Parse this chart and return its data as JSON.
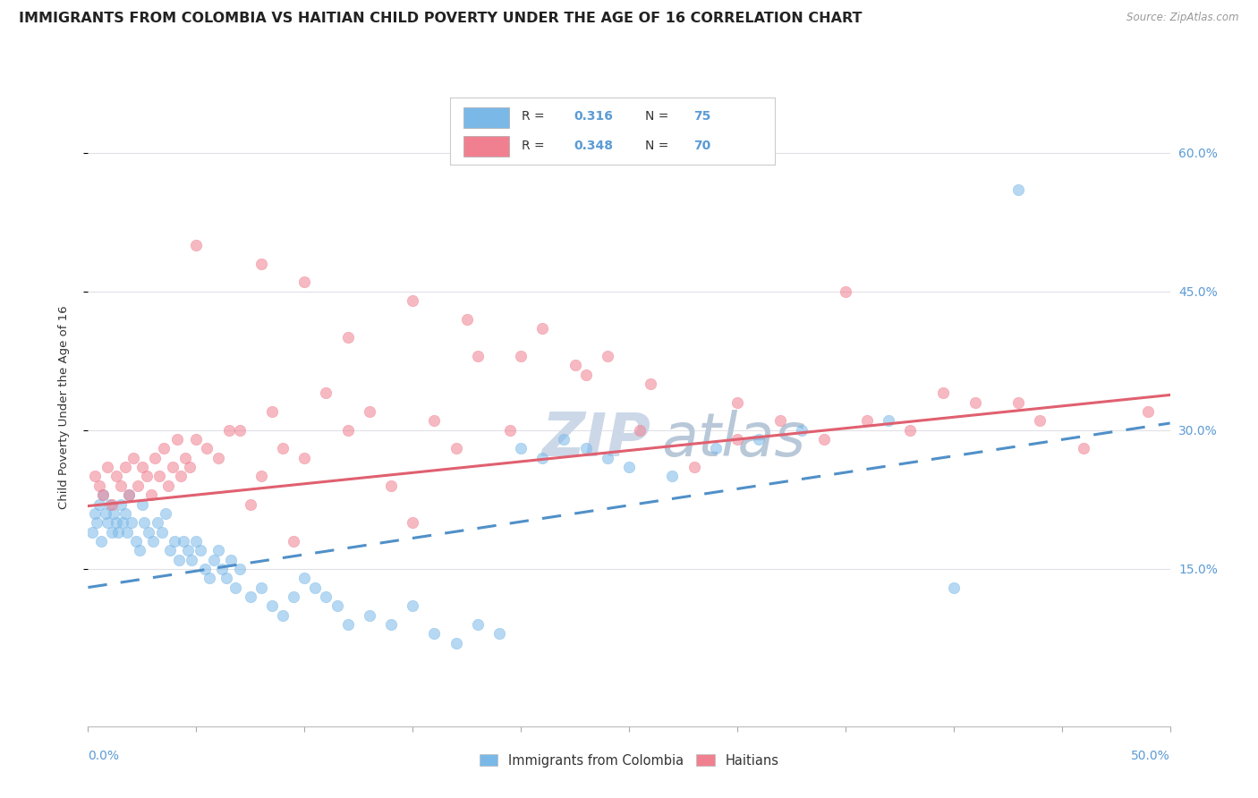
{
  "title": "IMMIGRANTS FROM COLOMBIA VS HAITIAN CHILD POVERTY UNDER THE AGE OF 16 CORRELATION CHART",
  "source": "Source: ZipAtlas.com",
  "ylabel": "Child Poverty Under the Age of 16",
  "ytick_labels": [
    "15.0%",
    "30.0%",
    "45.0%",
    "60.0%"
  ],
  "ytick_values": [
    0.15,
    0.3,
    0.45,
    0.6
  ],
  "xlim": [
    0.0,
    0.5
  ],
  "ylim": [
    -0.02,
    0.67
  ],
  "r_colombia": 0.316,
  "n_colombia": 75,
  "r_haiti": 0.348,
  "n_haiti": 70,
  "color_colombia": "#7ab8e8",
  "color_haiti": "#f08090",
  "color_colombia_line": "#5090c8",
  "color_haiti_line": "#e06070",
  "legend_label_colombia": "Immigrants from Colombia",
  "legend_label_haiti": "Haitians",
  "watermark": "ZIPatlas",
  "colombia_x": [
    0.002,
    0.003,
    0.004,
    0.005,
    0.006,
    0.007,
    0.008,
    0.009,
    0.01,
    0.011,
    0.012,
    0.013,
    0.014,
    0.015,
    0.016,
    0.017,
    0.018,
    0.019,
    0.02,
    0.022,
    0.024,
    0.025,
    0.026,
    0.028,
    0.03,
    0.032,
    0.034,
    0.036,
    0.038,
    0.04,
    0.042,
    0.044,
    0.046,
    0.048,
    0.05,
    0.052,
    0.054,
    0.056,
    0.058,
    0.06,
    0.062,
    0.064,
    0.066,
    0.068,
    0.07,
    0.075,
    0.08,
    0.085,
    0.09,
    0.095,
    0.1,
    0.105,
    0.11,
    0.115,
    0.12,
    0.13,
    0.14,
    0.15,
    0.16,
    0.17,
    0.18,
    0.19,
    0.2,
    0.21,
    0.22,
    0.23,
    0.24,
    0.25,
    0.27,
    0.29,
    0.31,
    0.33,
    0.37,
    0.4,
    0.43
  ],
  "colombia_y": [
    0.19,
    0.21,
    0.2,
    0.22,
    0.18,
    0.23,
    0.21,
    0.2,
    0.22,
    0.19,
    0.21,
    0.2,
    0.19,
    0.22,
    0.2,
    0.21,
    0.19,
    0.23,
    0.2,
    0.18,
    0.17,
    0.22,
    0.2,
    0.19,
    0.18,
    0.2,
    0.19,
    0.21,
    0.17,
    0.18,
    0.16,
    0.18,
    0.17,
    0.16,
    0.18,
    0.17,
    0.15,
    0.14,
    0.16,
    0.17,
    0.15,
    0.14,
    0.16,
    0.13,
    0.15,
    0.12,
    0.13,
    0.11,
    0.1,
    0.12,
    0.14,
    0.13,
    0.12,
    0.11,
    0.09,
    0.1,
    0.09,
    0.11,
    0.08,
    0.07,
    0.09,
    0.08,
    0.28,
    0.27,
    0.29,
    0.28,
    0.27,
    0.26,
    0.25,
    0.28,
    0.29,
    0.3,
    0.31,
    0.13,
    0.56
  ],
  "haiti_x": [
    0.003,
    0.005,
    0.007,
    0.009,
    0.011,
    0.013,
    0.015,
    0.017,
    0.019,
    0.021,
    0.023,
    0.025,
    0.027,
    0.029,
    0.031,
    0.033,
    0.035,
    0.037,
    0.039,
    0.041,
    0.043,
    0.045,
    0.047,
    0.05,
    0.055,
    0.06,
    0.065,
    0.07,
    0.075,
    0.08,
    0.085,
    0.09,
    0.095,
    0.1,
    0.11,
    0.12,
    0.13,
    0.14,
    0.15,
    0.16,
    0.17,
    0.18,
    0.195,
    0.21,
    0.225,
    0.24,
    0.255,
    0.28,
    0.3,
    0.32,
    0.34,
    0.35,
    0.36,
    0.38,
    0.395,
    0.41,
    0.43,
    0.44,
    0.46,
    0.49,
    0.05,
    0.08,
    0.1,
    0.12,
    0.15,
    0.175,
    0.2,
    0.23,
    0.26,
    0.3
  ],
  "haiti_y": [
    0.25,
    0.24,
    0.23,
    0.26,
    0.22,
    0.25,
    0.24,
    0.26,
    0.23,
    0.27,
    0.24,
    0.26,
    0.25,
    0.23,
    0.27,
    0.25,
    0.28,
    0.24,
    0.26,
    0.29,
    0.25,
    0.27,
    0.26,
    0.29,
    0.28,
    0.27,
    0.3,
    0.3,
    0.22,
    0.25,
    0.32,
    0.28,
    0.18,
    0.27,
    0.34,
    0.3,
    0.32,
    0.24,
    0.2,
    0.31,
    0.28,
    0.38,
    0.3,
    0.41,
    0.37,
    0.38,
    0.3,
    0.26,
    0.33,
    0.31,
    0.29,
    0.45,
    0.31,
    0.3,
    0.34,
    0.33,
    0.33,
    0.31,
    0.28,
    0.32,
    0.5,
    0.48,
    0.46,
    0.4,
    0.44,
    0.42,
    0.38,
    0.36,
    0.35,
    0.29
  ],
  "background_color": "#ffffff",
  "grid_color": "#e0e0e8",
  "title_fontsize": 11.5,
  "tick_fontsize": 10,
  "watermark_color": "#ccd8e8",
  "line_col_intercept": 0.13,
  "line_col_slope": 0.355,
  "line_hai_intercept": 0.218,
  "line_hai_slope": 0.24
}
